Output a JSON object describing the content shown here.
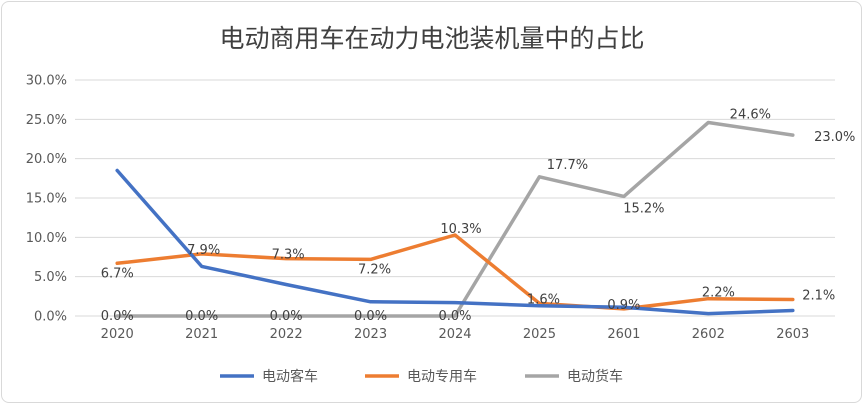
{
  "chart_data": {
    "type": "line",
    "title": "电动商用车在动力电池装机量中的占比",
    "categories": [
      "2020",
      "2021",
      "2022",
      "2023",
      "2024",
      "2025",
      "2601",
      "2602",
      "2603"
    ],
    "y_tick_labels": [
      "0.0%",
      "5.0%",
      "10.0%",
      "15.0%",
      "20.0%",
      "25.0%",
      "30.0%"
    ],
    "ylim": [
      0,
      30
    ],
    "grid": true,
    "legend_position": "bottom",
    "series": [
      {
        "name": "电动客车",
        "color": "#4472c4",
        "values": [
          18.5,
          6.3,
          4.0,
          1.8,
          1.7,
          1.3,
          1.1,
          0.3,
          0.7
        ],
        "labels": [
          null,
          null,
          null,
          null,
          null,
          null,
          null,
          null,
          null
        ]
      },
      {
        "name": "电动专用车",
        "color": "#ed7d31",
        "values": [
          6.7,
          7.9,
          7.3,
          7.2,
          10.3,
          1.6,
          0.9,
          2.2,
          2.1
        ],
        "labels": [
          "6.7%",
          "7.9%",
          "7.3%",
          "7.2%",
          "10.3%",
          "1.6%",
          "0.9%",
          "2.2%",
          "2.1%"
        ]
      },
      {
        "name": "电动货车",
        "color": "#a5a5a5",
        "values": [
          0.0,
          0.0,
          0.0,
          0.0,
          0.0,
          17.7,
          15.2,
          24.6,
          23.0
        ],
        "labels": [
          "0.0%",
          "0.0%",
          "0.0%",
          "0.0%",
          "0.0%",
          "17.7%",
          "15.2%",
          "24.6%",
          "23.0%"
        ]
      }
    ]
  }
}
